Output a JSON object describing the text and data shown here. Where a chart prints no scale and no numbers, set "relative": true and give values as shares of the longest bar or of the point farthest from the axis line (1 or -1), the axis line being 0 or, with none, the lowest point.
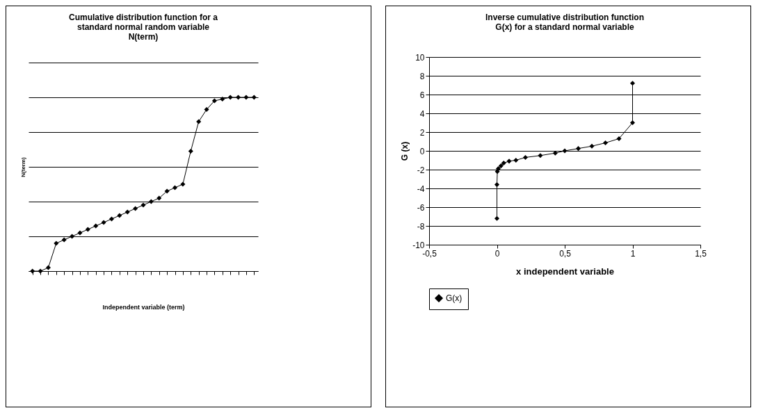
{
  "chart_data": [
    {
      "type": "line",
      "title": "Cumulative distribution function for a standard normal random variable N(term)",
      "xlabel": "Independent variable (term)",
      "ylabel": "N(term)",
      "relative": true,
      "categories": [
        null,
        null,
        null,
        null,
        null,
        null,
        null,
        null,
        null,
        null,
        null,
        null,
        null,
        null,
        null,
        null,
        null,
        null,
        null,
        null,
        null,
        null,
        null,
        null,
        null,
        null,
        null,
        null,
        null
      ],
      "series": [
        {
          "color": "#000000",
          "values": [
            0,
            0,
            0.02,
            0.16,
            0.18,
            0.2,
            0.22,
            0.24,
            0.26,
            0.28,
            0.3,
            0.32,
            0.34,
            0.36,
            0.38,
            0.4,
            0.42,
            0.46,
            0.48,
            0.5,
            0.69,
            0.86,
            0.93,
            0.98,
            0.99,
            1,
            1,
            1,
            1
          ]
        }
      ],
      "grid": "y",
      "marker": "diamond",
      "line_style": "solid"
    },
    {
      "type": "line",
      "title": "Inverse cumulative distribution function G(x) for a standard normal variable",
      "xlabel": "x independent variable",
      "ylabel": "G (x)",
      "x": [
        0,
        0,
        0.003,
        0.01,
        0.03,
        0.05,
        0.09,
        0.14,
        0.21,
        0.32,
        0.43,
        0.5,
        0.6,
        0.7,
        0.8,
        0.9,
        1,
        1
      ],
      "series": [
        {
          "name": "G(x)",
          "color": "#000000",
          "values": [
            -7.2,
            -3.6,
            -2.2,
            -1.9,
            -1.6,
            -1.3,
            -1.1,
            -1,
            -0.7,
            -0.5,
            -0.24,
            0,
            0.25,
            0.5,
            0.85,
            1.3,
            3,
            7.2
          ]
        }
      ],
      "xlim": [
        -0.5,
        1.5
      ],
      "xticks": [
        {
          "value": -0.5,
          "label": "-0,5"
        },
        0,
        {
          "value": 0.5,
          "label": "0,5"
        },
        1,
        {
          "value": 1.5,
          "label": "1,5"
        }
      ],
      "ylim": [
        -10,
        10
      ],
      "yticks": [
        {
          "value": -10,
          "label": "-10"
        },
        {
          "value": -8,
          "label": "-8"
        },
        {
          "value": -6,
          "label": "-6"
        },
        {
          "value": -4,
          "label": "-4"
        },
        {
          "value": -2,
          "label": "-2"
        },
        0,
        2,
        4,
        6,
        8,
        10
      ],
      "grid": "y",
      "legend": "bottom",
      "marker": "diamond",
      "line_style": "solid"
    }
  ]
}
